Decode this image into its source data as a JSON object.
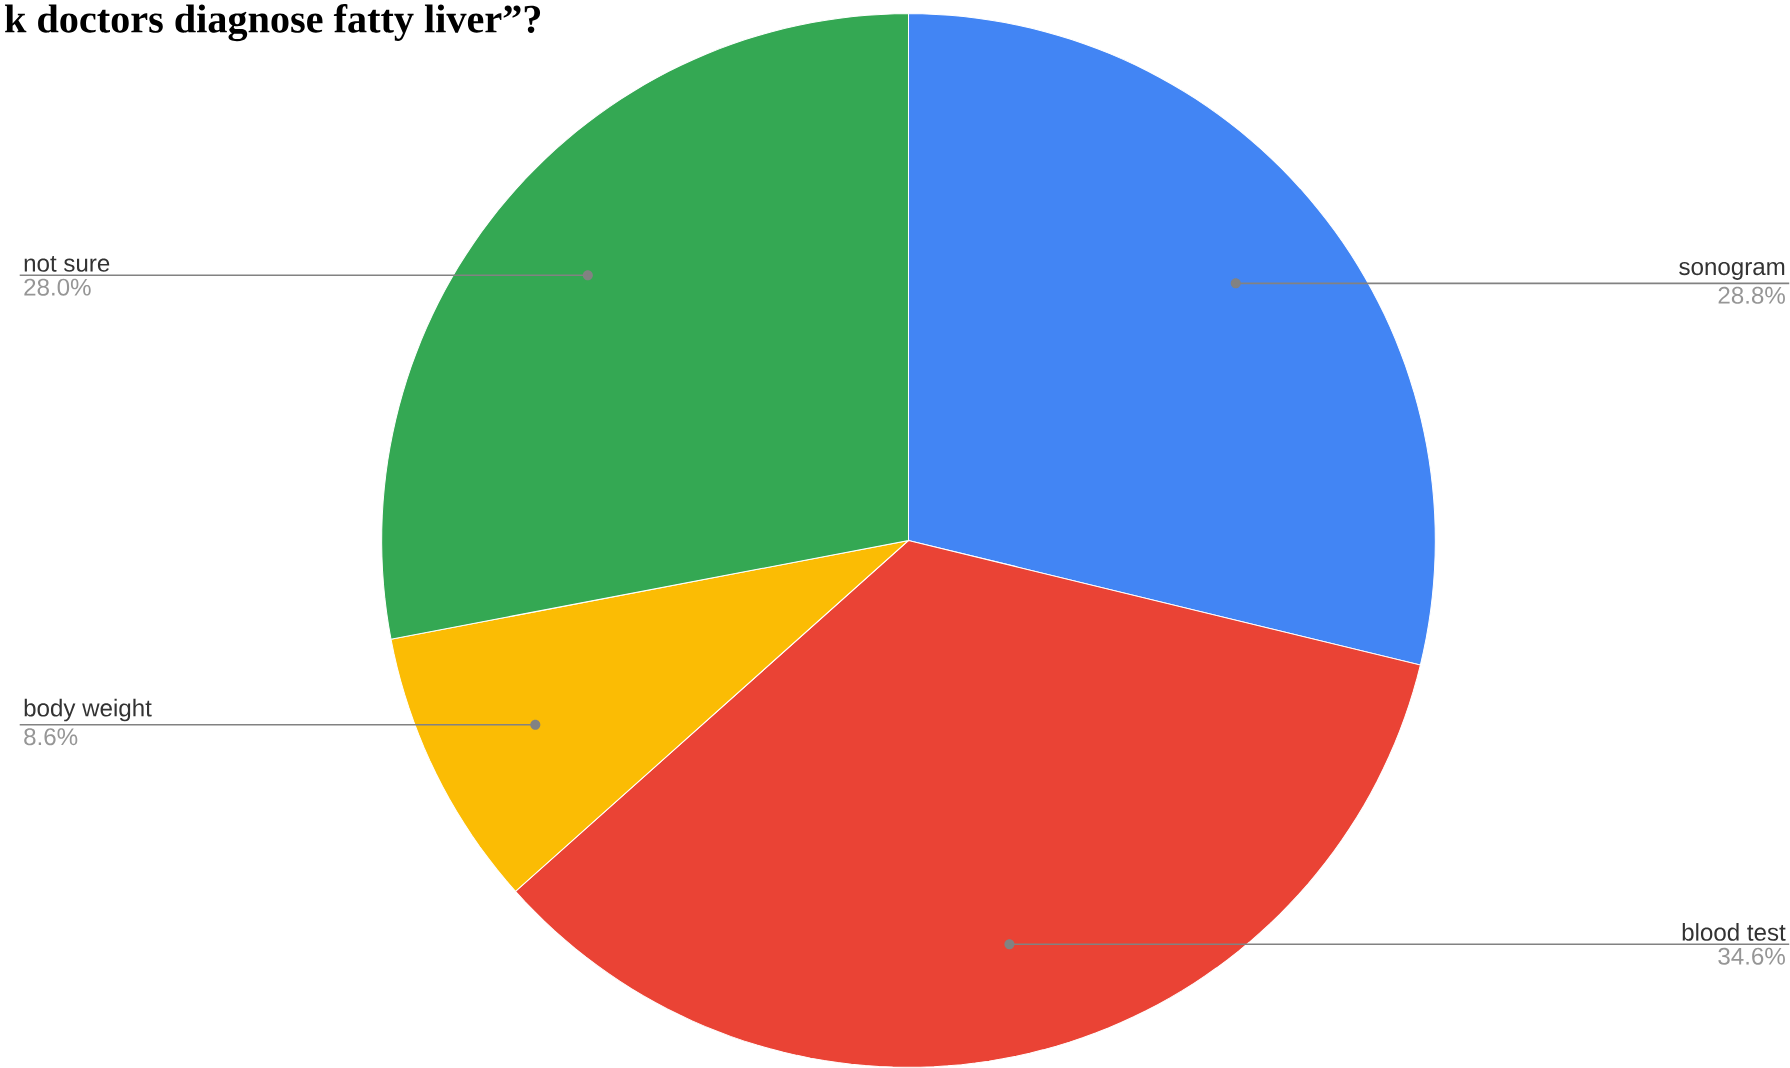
{
  "chart_data": {
    "type": "pie",
    "title": "k doctors diagnose fatty liver”?",
    "categories": [
      "sonogram",
      "blood test",
      "body weight",
      "not sure"
    ],
    "values": [
      28.8,
      34.6,
      8.6,
      28.0
    ],
    "value_labels": [
      "28.8%",
      "34.6%",
      "8.6%",
      "28.0%"
    ],
    "colors": [
      "#4285f4",
      "#ea4335",
      "#fbbc04",
      "#34a853"
    ]
  }
}
